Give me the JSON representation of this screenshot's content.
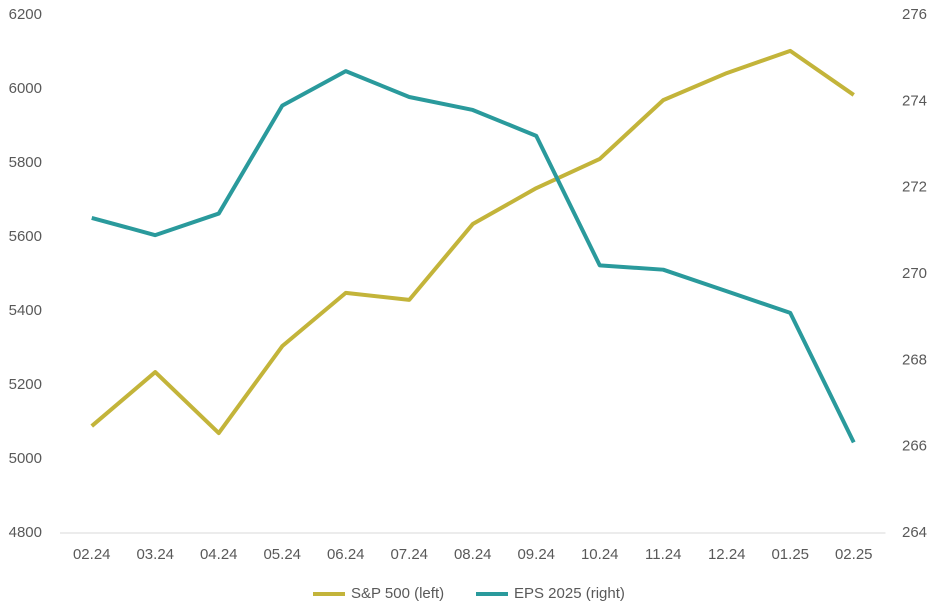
{
  "chart_data": {
    "type": "line",
    "categories": [
      "02.24",
      "03.24",
      "04.24",
      "05.24",
      "06.24",
      "07.24",
      "08.24",
      "09.24",
      "10.24",
      "11.24",
      "12.24",
      "01.25",
      "02.25"
    ],
    "series": [
      {
        "name": "S&P 500 (left)",
        "color": "#c3b43a",
        "values": [
          5089,
          5235,
          5070,
          5305,
          5449,
          5430,
          5635,
          5732,
          5811,
          5970,
          6043,
          6103,
          5984
        ]
      },
      {
        "name": "EPS 2025 (right)",
        "color": "#2a9a9c",
        "axis": "y2",
        "values": [
          271.3,
          270.9,
          271.4,
          273.9,
          274.7,
          274.1,
          273.8,
          273.2,
          270.2,
          270.1,
          269.6,
          269.1,
          266.1
        ]
      }
    ],
    "ylim": [
      4800,
      6200
    ],
    "yticks": [
      4800,
      5000,
      5200,
      5400,
      5600,
      5800,
      6000,
      6200
    ],
    "y2lim": [
      264,
      276
    ],
    "y2ticks": [
      264,
      266,
      268,
      270,
      272,
      274,
      276
    ],
    "grid": false,
    "legend": "bottom"
  }
}
